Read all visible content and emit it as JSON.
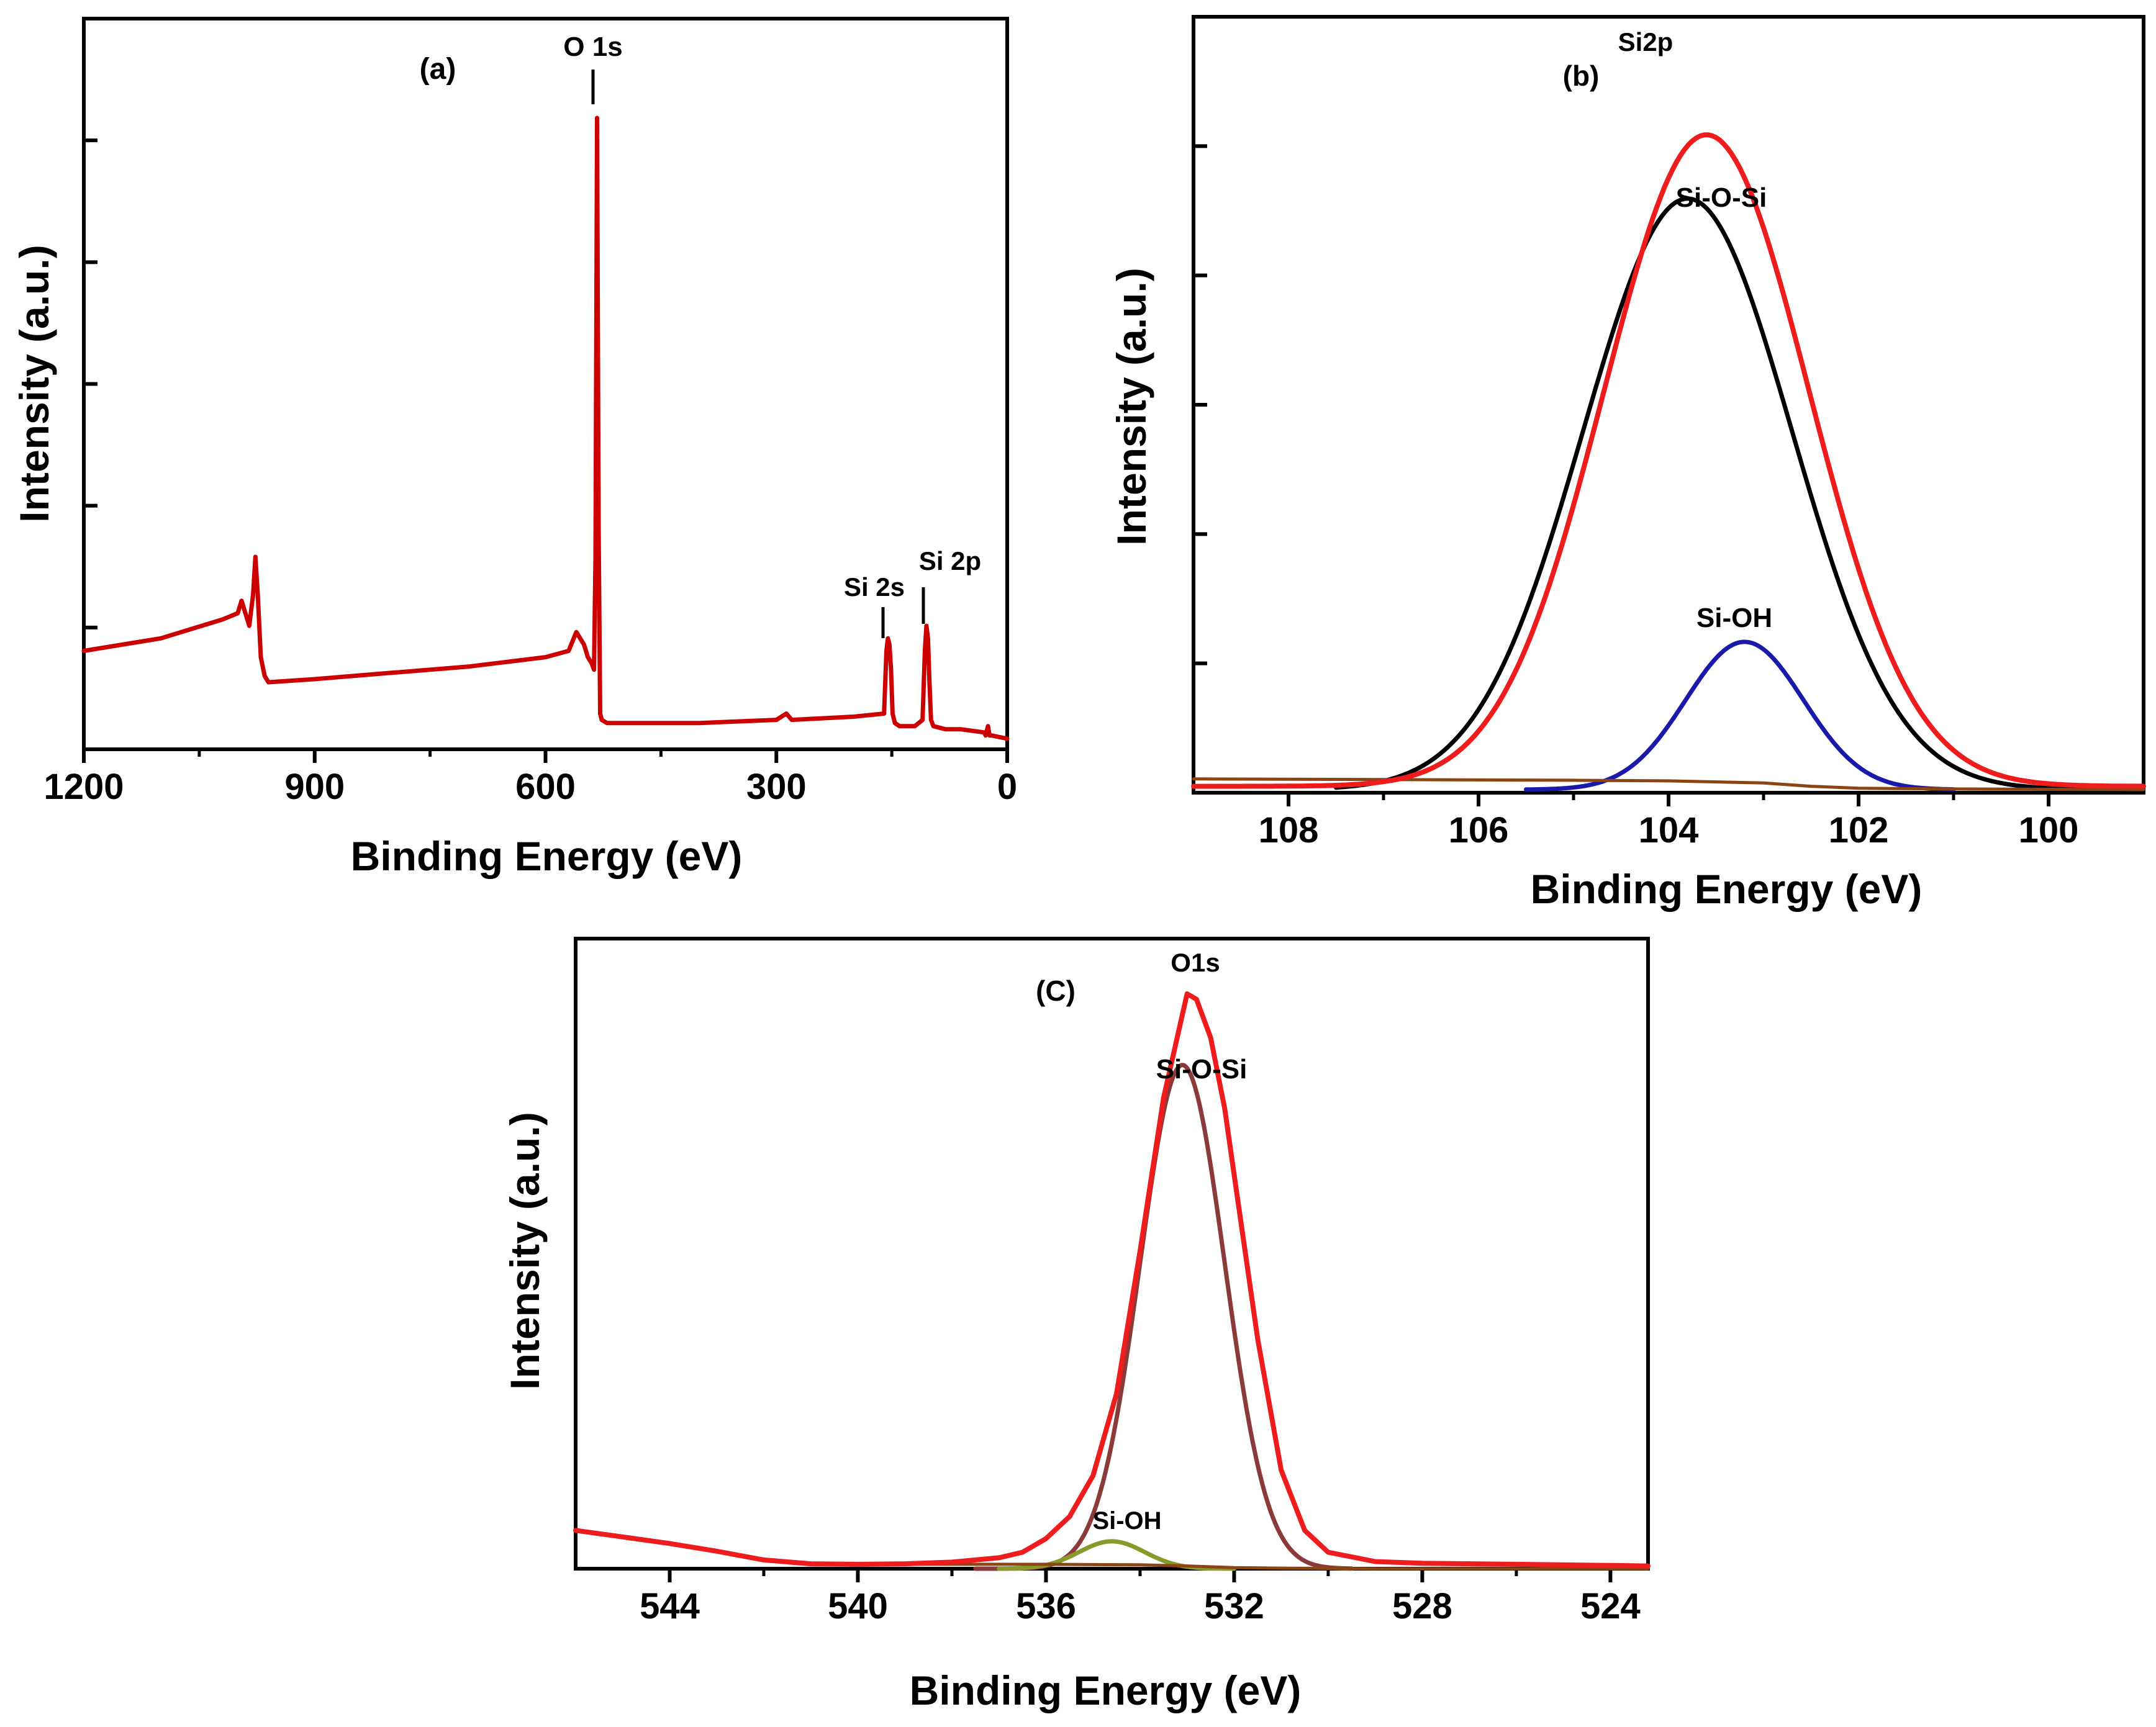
{
  "colors": {
    "survey": "#cc0000",
    "envelope": "#ee1c1c",
    "sio_si_b": "#000000",
    "sioh_b": "#1a1aaa",
    "bg_b": "#8b4513",
    "sio_si_c": "#8b3a3a",
    "sioh_c": "#8a9a2a",
    "bg_c": "#8b4513"
  },
  "chart_data": [
    {
      "id": "a",
      "type": "line",
      "panel_label": "(a)",
      "xlabel": "Binding Energy (eV)",
      "ylabel": "Intensity (a.u.)",
      "xlim": [
        1200,
        0
      ],
      "ylim": [
        0,
        100
      ],
      "xticks": [
        1200,
        900,
        600,
        300,
        0
      ],
      "xtick_labels": [
        "1200",
        "900",
        "600",
        "300",
        "0"
      ],
      "annotations": [
        {
          "text": "O 1s",
          "x": 533,
          "y": 100
        },
        {
          "text": "Si 2s",
          "x": 154,
          "y": 17
        },
        {
          "text": "Si 2p",
          "x": 103,
          "y": 19
        }
      ],
      "series": [
        {
          "name": "survey",
          "color_key": "survey",
          "x": [
            1200,
            1100,
            1020,
            1000,
            995,
            990,
            985,
            980,
            977,
            974,
            970,
            965,
            960,
            900,
            800,
            700,
            600,
            570,
            560,
            550,
            545,
            540,
            537,
            535,
            533,
            531,
            529,
            527,
            520,
            500,
            400,
            300,
            287,
            280,
            200,
            160,
            157,
            155,
            153,
            151,
            149,
            146,
            140,
            120,
            110,
            107,
            105,
            103,
            101,
            99,
            96,
            80,
            60,
            30,
            28,
            25,
            23,
            20,
            0
          ],
          "y": [
            15,
            17,
            20,
            21,
            23,
            21,
            19,
            24,
            30,
            24,
            14,
            11,
            10,
            10.5,
            11.5,
            12.5,
            14,
            15,
            18,
            16,
            14,
            13,
            12,
            30,
            100,
            35,
            5,
            4,
            3.5,
            3.5,
            3.5,
            4,
            5,
            4,
            4.5,
            5,
            15,
            17,
            16,
            12,
            5,
            3.5,
            3,
            3,
            4,
            15,
            19,
            17,
            10,
            4,
            3,
            2.5,
            2.5,
            2,
            1.5,
            3,
            1.5,
            1.5,
            1
          ]
        }
      ]
    },
    {
      "id": "b",
      "type": "line",
      "panel_label": "(b)",
      "title": "Si2p",
      "xlabel": "Binding Energy (eV)",
      "ylabel": "Intensity (a.u.)",
      "xlim": [
        109,
        99
      ],
      "ylim": [
        0,
        100
      ],
      "xticks": [
        108,
        106,
        104,
        102,
        100
      ],
      "xtick_labels": [
        "108",
        "106",
        "104",
        "102",
        "100"
      ],
      "annotations": [
        {
          "text": "Si-O-Si",
          "x": 103.5,
          "y": 86
        },
        {
          "text": "Si-OH",
          "x": 103.2,
          "y": 24
        }
      ],
      "series": [
        {
          "name": "Si-O-Si",
          "color_key": "sio_si_b",
          "shape": "gaussian",
          "center": 103.8,
          "height": 88,
          "sigma": 1.1,
          "baseline": 0,
          "xrange": [
            107.5,
            99.5
          ]
        },
        {
          "name": "Si-OH",
          "color_key": "sioh_b",
          "shape": "gaussian",
          "center": 103.2,
          "height": 22,
          "sigma": 0.62,
          "baseline": 0,
          "xrange": [
            105.5,
            101.0
          ]
        },
        {
          "name": "Background",
          "color_key": "bg_b",
          "x": [
            109,
            107,
            105,
            104,
            103,
            102.5,
            102,
            101,
            99
          ],
          "y": [
            1.6,
            1.5,
            1.4,
            1.3,
            1.0,
            0.5,
            0.2,
            0.1,
            0.0
          ]
        },
        {
          "name": "Envelope",
          "color_key": "envelope",
          "shape": "gaussian",
          "center": 103.6,
          "height": 97,
          "sigma": 1.08,
          "baseline": 0.5,
          "xrange": [
            109,
            99
          ]
        }
      ]
    },
    {
      "id": "c",
      "type": "line",
      "panel_label": "(C)",
      "title": "O1s",
      "xlabel": "Binding Energy (eV)",
      "ylabel": "Intensity (a.u.)",
      "xlim": [
        546,
        523.2
      ],
      "ylim": [
        0,
        100
      ],
      "xticks": [
        544,
        540,
        536,
        532,
        528,
        524
      ],
      "xtick_labels": [
        "544",
        "540",
        "536",
        "532",
        "528",
        "524"
      ],
      "annotations": [
        {
          "text": "Si-O-Si",
          "x": 532.7,
          "y": 101
        },
        {
          "text": "Si-OH",
          "x": 535.0,
          "y": 10
        }
      ],
      "series": [
        {
          "name": "Si-O-Si",
          "color_key": "sio_si_c",
          "shape": "gaussian",
          "center": 533.1,
          "height": 92,
          "sigma": 0.9,
          "baseline": 0,
          "xrange": [
            537.5,
            529.5
          ]
        },
        {
          "name": "Si-OH",
          "color_key": "sioh_c",
          "shape": "gaussian",
          "center": 534.6,
          "height": 5,
          "sigma": 0.7,
          "baseline": 0,
          "xrange": [
            537.0,
            532.0
          ]
        },
        {
          "name": "Background",
          "color_key": "bg_c",
          "x": [
            540,
            538,
            536,
            534,
            533,
            532,
            531,
            529,
            523.2
          ],
          "y": [
            0.8,
            0.8,
            0.8,
            0.7,
            0.5,
            0.2,
            0.1,
            0.0,
            0.0
          ]
        },
        {
          "name": "Envelope",
          "color_key": "envelope",
          "x": [
            546,
            545,
            544,
            543,
            542,
            541,
            540,
            539,
            538,
            537,
            536.5,
            536,
            535.5,
            535,
            534.5,
            534,
            533.5,
            533.0,
            532.8,
            532.5,
            532.2,
            532,
            531.5,
            531,
            530.5,
            530,
            529,
            528,
            526,
            524,
            523.2
          ],
          "y": [
            7.0,
            5.8,
            4.6,
            3.2,
            1.6,
            0.9,
            0.8,
            0.9,
            1.2,
            2.0,
            3.0,
            5.5,
            9.5,
            17,
            32,
            58,
            86,
            105,
            104,
            97,
            84,
            72,
            42,
            18,
            7,
            3,
            1.3,
            1.0,
            0.8,
            0.6,
            0.5
          ]
        }
      ]
    }
  ]
}
